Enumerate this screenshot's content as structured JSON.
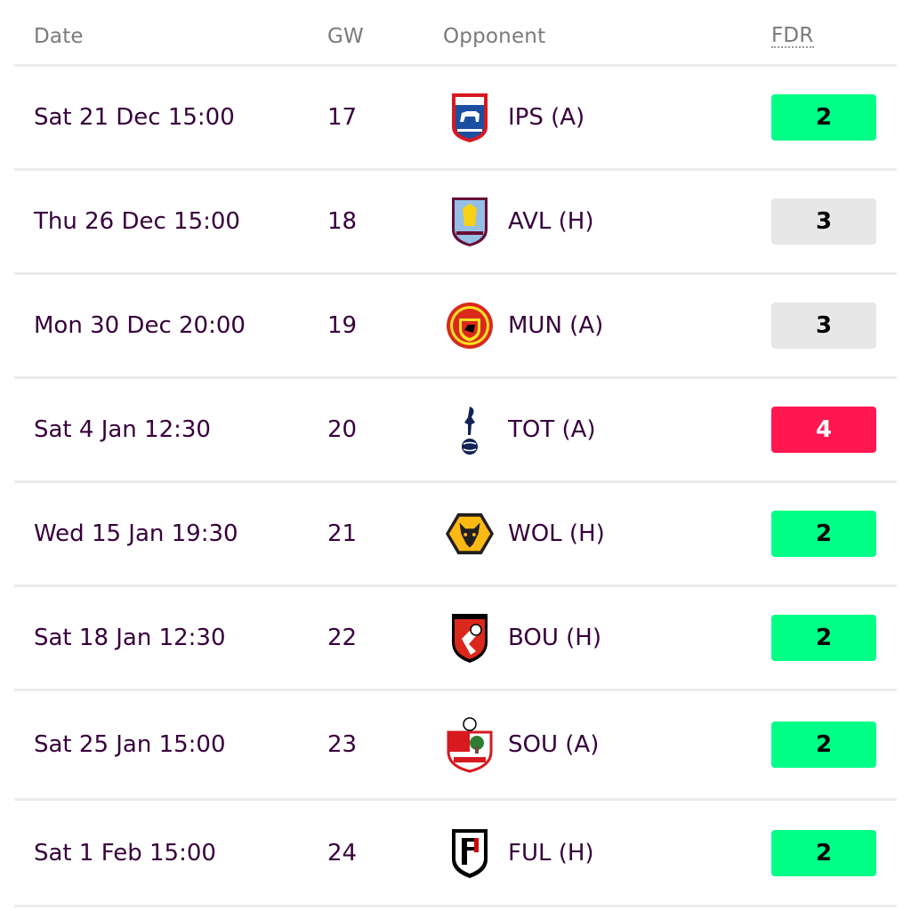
{
  "headers": {
    "date": "Date",
    "gw": "GW",
    "opponent": "Opponent",
    "fdr": "FDR"
  },
  "fixtures": [
    {
      "date": "Sat 21 Dec 15:00",
      "gw": "17",
      "opponent": "IPS (A)",
      "badge": "ipswich-badge-icon",
      "fdr": "2",
      "fdr_bg": "#00ff87",
      "fdr_fg": "#000000"
    },
    {
      "date": "Thu 26 Dec 15:00",
      "gw": "18",
      "opponent": "AVL (H)",
      "badge": "aston-villa-badge-icon",
      "fdr": "3",
      "fdr_bg": "#e7e7e7",
      "fdr_fg": "#000000"
    },
    {
      "date": "Mon 30 Dec 20:00",
      "gw": "19",
      "opponent": "MUN (A)",
      "badge": "man-utd-badge-icon",
      "fdr": "3",
      "fdr_bg": "#e7e7e7",
      "fdr_fg": "#000000"
    },
    {
      "date": "Sat 4 Jan 12:30",
      "gw": "20",
      "opponent": "TOT (A)",
      "badge": "tottenham-badge-icon",
      "fdr": "4",
      "fdr_bg": "#ff1751",
      "fdr_fg": "#ffffff"
    },
    {
      "date": "Wed 15 Jan 19:30",
      "gw": "21",
      "opponent": "WOL (H)",
      "badge": "wolves-badge-icon",
      "fdr": "2",
      "fdr_bg": "#00ff87",
      "fdr_fg": "#000000"
    },
    {
      "date": "Sat 18 Jan 12:30",
      "gw": "22",
      "opponent": "BOU (H)",
      "badge": "bournemouth-badge-icon",
      "fdr": "2",
      "fdr_bg": "#00ff87",
      "fdr_fg": "#000000"
    },
    {
      "date": "Sat 25 Jan 15:00",
      "gw": "23",
      "opponent": "SOU (A)",
      "badge": "southampton-badge-icon",
      "fdr": "2",
      "fdr_bg": "#00ff87",
      "fdr_fg": "#000000"
    },
    {
      "date": "Sat 1 Feb 15:00",
      "gw": "24",
      "opponent": "FUL (H)",
      "badge": "fulham-badge-icon",
      "fdr": "2",
      "fdr_bg": "#00ff87",
      "fdr_fg": "#000000"
    }
  ]
}
